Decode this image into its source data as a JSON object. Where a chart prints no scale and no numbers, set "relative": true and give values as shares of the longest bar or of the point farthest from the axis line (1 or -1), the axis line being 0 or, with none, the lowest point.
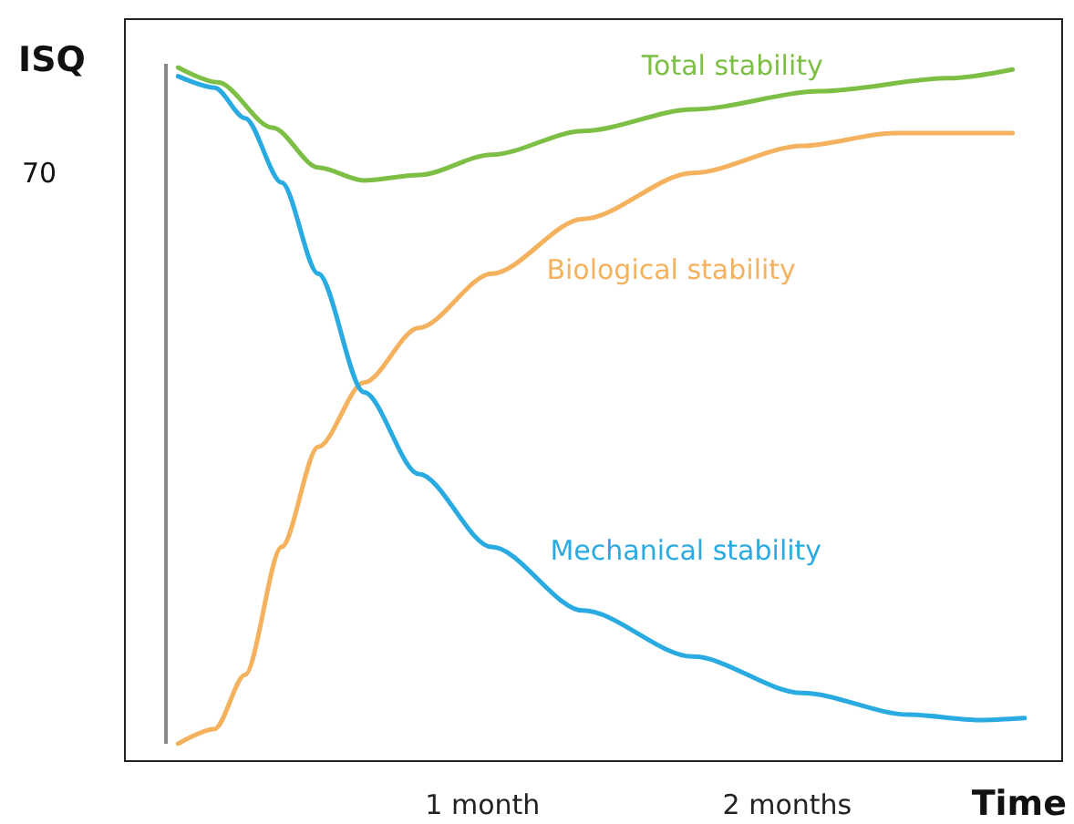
{
  "chart_data": {
    "type": "line",
    "relative": true,
    "xlabel": "Time",
    "ylabel": "ISQ",
    "annotations": [
      "70"
    ],
    "xlim": [
      -0.04,
      2.9
    ],
    "xticks": [
      {
        "value": 1,
        "label": "1 month"
      },
      {
        "value": 2,
        "label": "2 months"
      }
    ],
    "grid": false,
    "legend": false,
    "marker": "none",
    "line_style": "solid",
    "series": [
      {
        "name": "Total stability",
        "color": "#7dbf44",
        "x": [
          0,
          0.13,
          0.31,
          0.46,
          0.61,
          0.79,
          1.03,
          1.33,
          1.69,
          2.11,
          2.53,
          2.74
        ],
        "values": [
          1.0,
          0.978,
          0.911,
          0.852,
          0.833,
          0.841,
          0.871,
          0.906,
          0.938,
          0.965,
          0.984,
          0.997
        ]
      },
      {
        "name": "Biological stability",
        "color": "#f5b25e",
        "x": [
          0,
          0.12,
          0.22,
          0.34,
          0.46,
          0.61,
          0.79,
          1.03,
          1.33,
          1.69,
          2.05,
          2.35,
          2.74
        ],
        "values": [
          0,
          0.022,
          0.102,
          0.291,
          0.439,
          0.534,
          0.615,
          0.695,
          0.776,
          0.844,
          0.884,
          0.903,
          0.903
        ]
      },
      {
        "name": "Mechanical stability",
        "color": "#29abe2",
        "x": [
          0,
          0.12,
          0.22,
          0.34,
          0.46,
          0.61,
          0.79,
          1.03,
          1.33,
          1.69,
          2.05,
          2.4,
          2.63,
          2.78
        ],
        "values": [
          0.987,
          0.97,
          0.925,
          0.83,
          0.695,
          0.52,
          0.399,
          0.291,
          0.197,
          0.129,
          0.075,
          0.043,
          0.035,
          0.038
        ]
      }
    ]
  }
}
